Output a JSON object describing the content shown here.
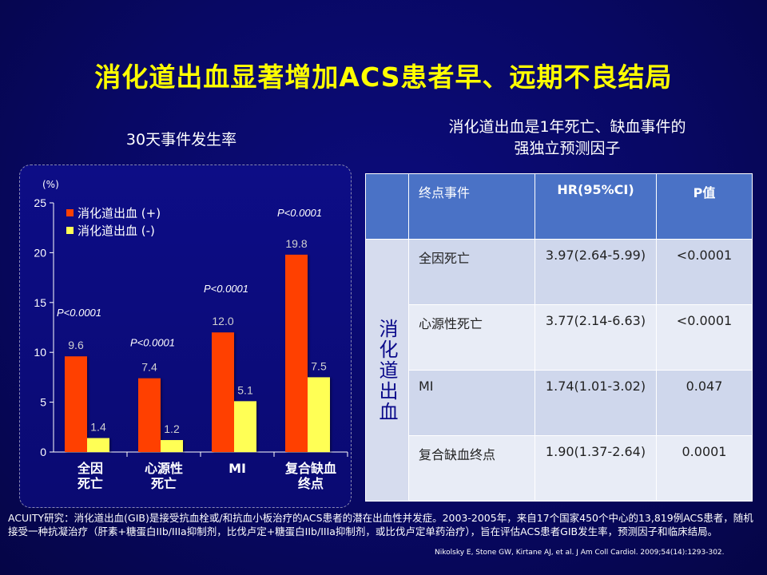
{
  "title": "消化道出血显著增加ACS患者早、远期不良结局",
  "chart_subtitle": "30天事件发生率",
  "table_subtitle_line1": "消化道出血是1年死亡、缺血事件的",
  "table_subtitle_line2": "强独立预测因子",
  "chart_data": {
    "type": "bar",
    "title": "30天事件发生率",
    "ylabel": "(%)",
    "ylim": [
      0,
      25
    ],
    "yticks": [
      0,
      5,
      10,
      15,
      20,
      25
    ],
    "categories": [
      [
        "全因",
        "死亡"
      ],
      [
        "心源性",
        "死亡"
      ],
      [
        "MI"
      ],
      [
        "复合缺血",
        "终点"
      ]
    ],
    "series": [
      {
        "name": "消化道出血 (+)",
        "color": "#ff4000",
        "values": [
          9.6,
          7.4,
          12.0,
          19.8
        ],
        "labels": [
          "9.6",
          "7.4",
          "12.0",
          "19.8"
        ]
      },
      {
        "name": "消化道出血 (-)",
        "color": "#ffff55",
        "values": [
          1.4,
          1.2,
          5.1,
          7.5
        ],
        "labels": [
          "1.4",
          "1.2",
          "5.1",
          "7.5"
        ]
      }
    ],
    "pvalues": [
      "P<0.0001",
      "P<0.0001",
      "P<0.0001",
      "P<0.0001"
    ],
    "legend_position": "top-left"
  },
  "table": {
    "row_header": "消化道出血",
    "headers": [
      "终点事件",
      "HR(95%CI)",
      "P值"
    ],
    "rows": [
      [
        "全因死亡",
        "3.97(2.64-5.99)",
        "<0.0001"
      ],
      [
        "心源性死亡",
        "3.77(2.14-6.63)",
        "<0.0001"
      ],
      [
        "MI",
        "1.74(1.01-3.02)",
        "0.047"
      ],
      [
        "复合缺血终点",
        "1.90(1.37-2.64)",
        "0.0001"
      ]
    ]
  },
  "footnote": "ACUITY研究：消化道出血(GIB)是接受抗血栓或/和抗血小板治疗的ACS患者的潜在出血性并发症。2003-2005年，来自17个国家450个中心的13,819例ACS患者，随机接受一种抗凝治疗（肝素+糖蛋白IIb/IIIa抑制剂，比伐卢定+糖蛋白IIb/IIIa抑制剂，或比伐卢定单药治疗），旨在评估ACS患者GIB发生率，预测因子和临床结局。",
  "citation": "Nikolsky E, Stone GW, Kirtane AJ, et al. J Am Coll Cardiol. 2009;54(14):1293-302.",
  "colors": {
    "title": "#ffff00",
    "background": "#080864",
    "table_header": "#4a72c6"
  }
}
